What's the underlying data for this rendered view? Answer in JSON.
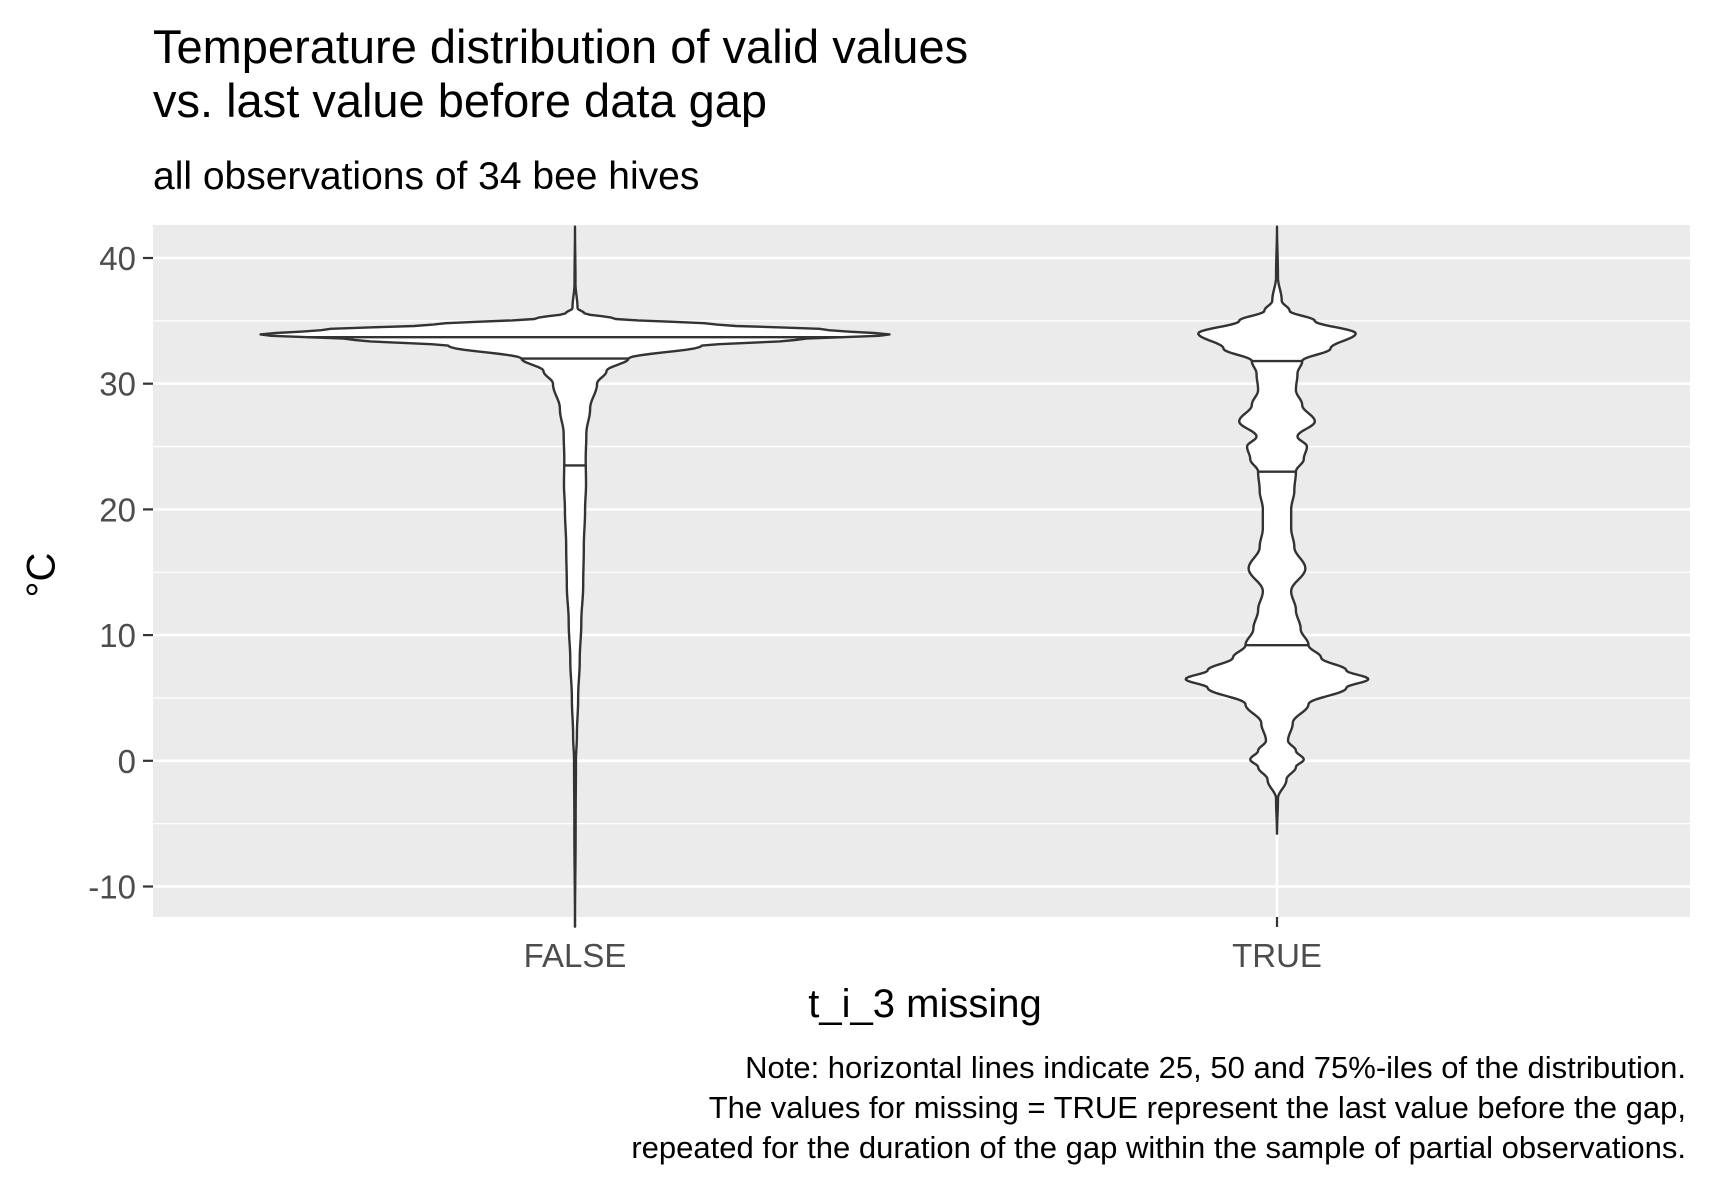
{
  "chart_data": {
    "type": "violin",
    "title": "Temperature distribution of valid values\nvs. last value before data gap",
    "subtitle": "all observations of 34 bee hives",
    "xlabel": "t_i_3 missing",
    "ylabel": "°C",
    "caption": "Note: horizontal lines indicate 25, 50 and 75%-iles of the distribution.\nThe values for missing = TRUE represent the last value before the gap,\nrepeated for the duration of the gap within the sample of partial observations.",
    "categories": [
      "FALSE",
      "TRUE"
    ],
    "ylim": [
      -12.5,
      42.5
    ],
    "y_ticks": [
      40,
      30,
      20,
      10,
      0,
      -10
    ],
    "y_tick_labels": [
      "40",
      "30",
      "20",
      "10",
      "0",
      "-10"
    ],
    "grid": true,
    "legend": "none",
    "colors": {
      "panel": "#EBEBEB",
      "grid": "#FFFFFF",
      "outline": "#333333",
      "fill": "#FFFFFF",
      "tick_text": "#4D4D4D"
    },
    "violins": [
      {
        "category": "FALSE",
        "quantiles": {
          "q25": 23.5,
          "q50": 32.0,
          "q75": 33.7
        },
        "profile": [
          [
            -13.2,
            0.0
          ],
          [
            -5.0,
            0.2
          ],
          [
            0.0,
            0.3
          ],
          [
            2.0,
            0.6
          ],
          [
            5.0,
            1.0
          ],
          [
            8.0,
            1.5
          ],
          [
            11.0,
            2.0
          ],
          [
            14.0,
            2.6
          ],
          [
            17.0,
            2.8
          ],
          [
            20.0,
            3.2
          ],
          [
            22.0,
            3.5
          ],
          [
            24.0,
            3.4
          ],
          [
            26.0,
            3.6
          ],
          [
            28.0,
            4.8
          ],
          [
            30.0,
            7.0
          ],
          [
            31.0,
            10.0
          ],
          [
            32.0,
            17.0
          ],
          [
            33.0,
            40.0
          ],
          [
            33.5,
            70.0
          ],
          [
            33.9,
            100.0
          ],
          [
            34.3,
            80.0
          ],
          [
            34.7,
            45.0
          ],
          [
            35.2,
            12.0
          ],
          [
            35.6,
            3.0
          ],
          [
            36.0,
            0.8
          ],
          [
            38.0,
            0.15
          ],
          [
            42.5,
            0.0
          ]
        ]
      },
      {
        "category": "TRUE",
        "quantiles": {
          "q25": 9.2,
          "q50": 23.0,
          "q75": 31.8
        },
        "profile": [
          [
            -5.8,
            0.0
          ],
          [
            -3.0,
            0.3
          ],
          [
            -1.5,
            3.0
          ],
          [
            -0.5,
            6.0
          ],
          [
            0.1,
            8.5
          ],
          [
            0.8,
            6.0
          ],
          [
            1.6,
            3.5
          ],
          [
            3.0,
            5.0
          ],
          [
            4.5,
            10.0
          ],
          [
            5.8,
            22.0
          ],
          [
            6.5,
            29.0
          ],
          [
            7.2,
            22.0
          ],
          [
            8.2,
            14.0
          ],
          [
            9.2,
            10.0
          ],
          [
            10.5,
            7.5
          ],
          [
            12.0,
            6.0
          ],
          [
            13.5,
            4.5
          ],
          [
            15.3,
            9.0
          ],
          [
            17.0,
            5.5
          ],
          [
            18.5,
            4.5
          ],
          [
            20.0,
            4.5
          ],
          [
            21.5,
            5.5
          ],
          [
            23.0,
            6.0
          ],
          [
            24.0,
            8.5
          ],
          [
            25.0,
            9.5
          ],
          [
            25.8,
            6.5
          ],
          [
            27.0,
            12.0
          ],
          [
            28.3,
            8.0
          ],
          [
            29.5,
            6.0
          ],
          [
            30.8,
            6.5
          ],
          [
            31.8,
            8.0
          ],
          [
            32.8,
            17.0
          ],
          [
            34.0,
            25.0
          ],
          [
            35.0,
            12.0
          ],
          [
            35.8,
            4.0
          ],
          [
            36.6,
            1.5
          ],
          [
            38.5,
            0.3
          ],
          [
            42.5,
            0.0
          ]
        ]
      }
    ]
  }
}
